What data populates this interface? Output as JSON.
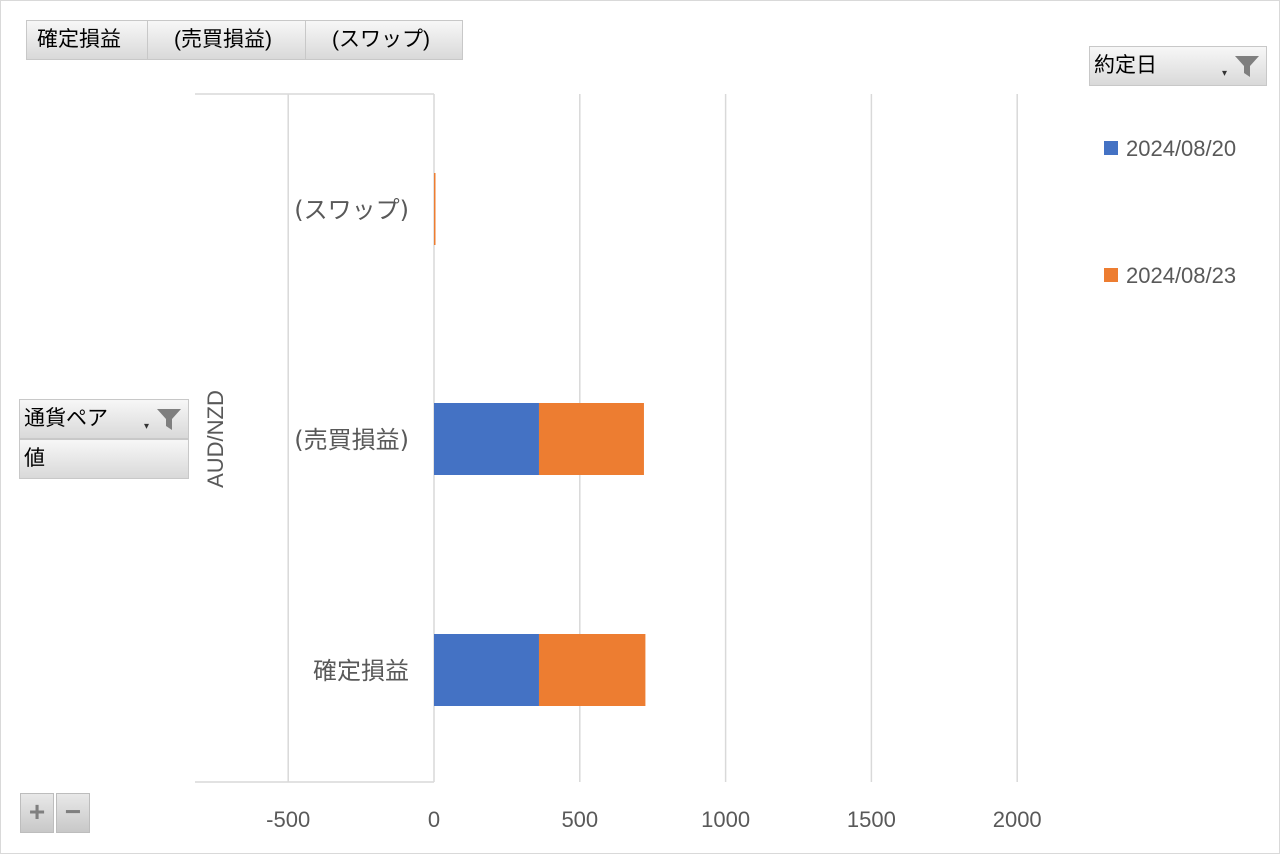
{
  "chart_data": {
    "type": "bar",
    "orientation": "horizontal",
    "stacked": true,
    "group_label": "AUD/NZD",
    "categories": [
      "(スワップ)",
      "(売買損益)",
      "確定損益"
    ],
    "series": [
      {
        "name": "2024/08/20",
        "color": "#4472C4",
        "values": [
          0,
          360,
          360
        ]
      },
      {
        "name": "2024/08/23",
        "color": "#ED7D31",
        "values": [
          5,
          360,
          365
        ]
      }
    ],
    "x_ticks": [
      "-500",
      "0",
      "500",
      "1000",
      "1500",
      "2000"
    ],
    "xlim": [
      -500,
      2000
    ],
    "grid": true,
    "legend_position": "right"
  },
  "value_fields": [
    "確定損益",
    "(売買損益)",
    "(スワップ)"
  ],
  "legend_filter": {
    "label": "約定日"
  },
  "axis_filter": {
    "label": "通貨ペア",
    "values_label": "値"
  },
  "zoom": {
    "plus": "+",
    "minus": "−"
  }
}
